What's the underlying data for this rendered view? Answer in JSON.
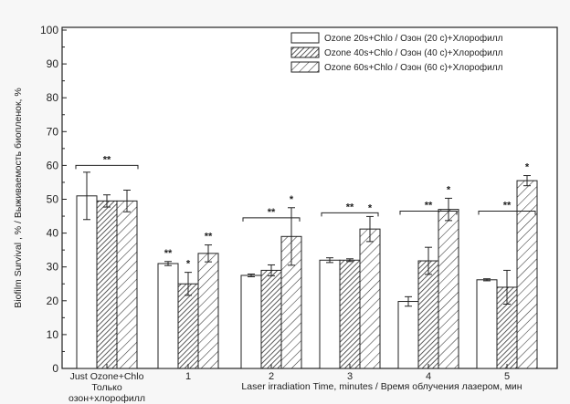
{
  "chart_data": {
    "type": "bar",
    "categories": [
      "Just Ozone+Chlo\nТолько\nозон+хлорофилл",
      "1",
      "2",
      "3",
      "4",
      "5"
    ],
    "series": [
      {
        "name": "Ozone 20s+Chlo / Озон (20 с)+Хлорофилл",
        "values": [
          51,
          31,
          27.5,
          32,
          19.8,
          26.2
        ],
        "errors": [
          7,
          0.6,
          0.4,
          0.7,
          1.4,
          0.3
        ]
      },
      {
        "name": "Ozone 40s+Chlo / Озон (40 с)+Хлорофилл",
        "values": [
          49.5,
          25,
          29,
          32,
          31.8,
          24
        ],
        "errors": [
          1.8,
          3.4,
          1.6,
          0.4,
          4,
          5
        ]
      },
      {
        "name": "Ozone 60s+Chlo / Озон (60 с)+Хлорофилл",
        "values": [
          49.5,
          34,
          39,
          41.2,
          47,
          55.5
        ],
        "errors": [
          3.2,
          2.5,
          8.5,
          3.7,
          3.3,
          1.5
        ]
      }
    ],
    "xlabel": "Laser irradiation Time, minutes / Время облучения лазером, мин",
    "ylabel": "Biofilm Survival , % / Выживаемость биопленок, %",
    "ylim": [
      0,
      100
    ],
    "yticks": [
      0,
      10,
      20,
      30,
      40,
      50,
      60,
      70,
      80,
      90,
      100
    ],
    "legend_position": "top-right",
    "annotations": {
      "group_brackets": [
        {
          "group": 0,
          "label": "**",
          "y": 60
        },
        {
          "group": 2,
          "label": "**",
          "y": 44.5
        },
        {
          "group": 3,
          "label": "**",
          "y": 46
        },
        {
          "group": 4,
          "label": "**",
          "y": 46.5
        },
        {
          "group": 5,
          "label": "**",
          "y": 46.5
        }
      ],
      "bar_labels": [
        {
          "group": 1,
          "series": 0,
          "label": "**"
        },
        {
          "group": 1,
          "series": 1,
          "label": "*"
        },
        {
          "group": 1,
          "series": 2,
          "label": "**"
        },
        {
          "group": 2,
          "series": 2,
          "label": "*"
        },
        {
          "group": 3,
          "series": 2,
          "label": "*"
        },
        {
          "group": 4,
          "series": 2,
          "label": "*"
        },
        {
          "group": 5,
          "series": 2,
          "label": "*"
        }
      ]
    }
  }
}
